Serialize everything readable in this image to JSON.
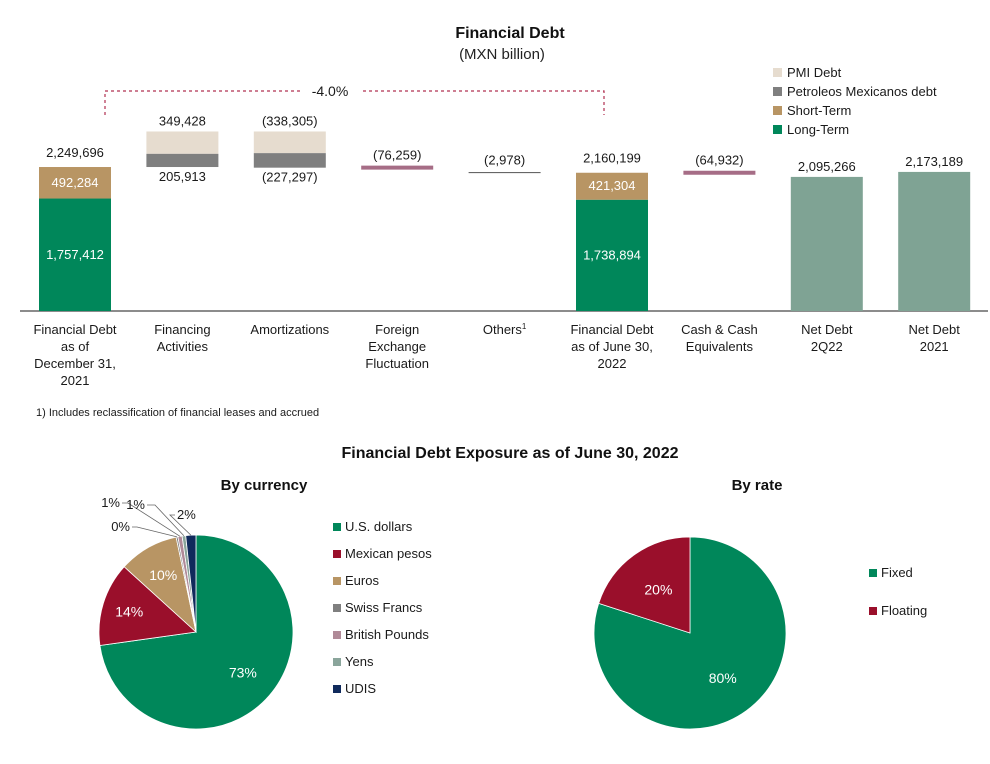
{
  "colors": {
    "long_term": "#00875a",
    "short_term": "#b89564",
    "pemex_debt": "#7f7f7f",
    "pmi_debt": "#e6dccf",
    "fx_line": "#a66d86",
    "net_debt": "#7fa394",
    "usd": "#00875a",
    "mxn": "#9a0f2b",
    "eur": "#b89564",
    "chf": "#7f7f7f",
    "gbp": "#b08a98",
    "jpy": "#8aa59b",
    "udis": "#102a5c",
    "fixed": "#00875a",
    "floating": "#9a0f2b",
    "bracket": "#b03050"
  },
  "chart_data": [
    {
      "type": "bar",
      "title": "Financial Debt",
      "subtitle": "(MXN billion)",
      "change_label": "-4.0%",
      "legend": [
        "PMI Debt",
        "Petroleos Mexicanos debt",
        "Short-Term",
        "Long-Term"
      ],
      "categories": [
        {
          "lines": [
            "Financial Debt",
            "as of",
            "December 31,",
            "2021"
          ]
        },
        {
          "lines": [
            "Financing",
            "Activities"
          ]
        },
        {
          "lines": [
            "Amortizations"
          ]
        },
        {
          "lines": [
            "Foreign",
            "Exchange",
            "Fluctuation"
          ]
        },
        {
          "lines": [
            "Others"
          ],
          "sup": "1"
        },
        {
          "lines": [
            "Financial Debt",
            "as of June 30,",
            "2022"
          ]
        },
        {
          "lines": [
            "Cash & Cash",
            "Equivalents"
          ]
        },
        {
          "lines": [
            "Net Debt",
            "2Q22"
          ]
        },
        {
          "lines": [
            "Net Debt",
            "2021"
          ]
        }
      ],
      "bars": [
        {
          "kind": "stack",
          "long_term": 1757412,
          "short_term": 492284,
          "total": 2249696,
          "long_label": "1,757,412",
          "short_label": "492,284",
          "total_label": "2,249,696"
        },
        {
          "kind": "float",
          "pmi": 349428,
          "pemex": 205913,
          "pmi_label": "349,428",
          "pemex_label": "205,913"
        },
        {
          "kind": "float",
          "pmi": -338305,
          "pemex": -227297,
          "pmi_label": "(338,305)",
          "pemex_label": "(227,297)"
        },
        {
          "kind": "line",
          "value": -76259,
          "label": "(76,259)",
          "color_key": "fx_line"
        },
        {
          "kind": "line",
          "value": -2978,
          "label": "(2,978)",
          "color_key": "none"
        },
        {
          "kind": "stack",
          "long_term": 1738894,
          "short_term": 421304,
          "total": 2160199,
          "long_label": "1,738,894",
          "short_label": "421,304",
          "total_label": "2,160,199"
        },
        {
          "kind": "line",
          "value": -64932,
          "label": "(64,932)",
          "color_key": "fx_line"
        },
        {
          "kind": "single",
          "value": 2095266,
          "label": "2,095,266"
        },
        {
          "kind": "single",
          "value": 2173189,
          "label": "2,173,189"
        }
      ],
      "footnote": "1) Includes reclassification of financial leases and accrued"
    },
    {
      "type": "pie",
      "section_title": "Financial Debt Exposure as of June 30, 2022",
      "title": "By currency",
      "slices": [
        {
          "name": "U.S. dollars",
          "value": 73,
          "label": "73%",
          "color_key": "usd"
        },
        {
          "name": "Mexican pesos",
          "value": 14,
          "label": "14%",
          "color_key": "mxn"
        },
        {
          "name": "Euros",
          "value": 10,
          "label": "10%",
          "color_key": "eur"
        },
        {
          "name": "Swiss Francs",
          "value": 0.3,
          "label": "0%",
          "color_key": "chf"
        },
        {
          "name": "British Pounds",
          "value": 0.7,
          "label": "1%",
          "color_key": "gbp"
        },
        {
          "name": "Yens",
          "value": 0.6,
          "label": "1%",
          "color_key": "jpy"
        },
        {
          "name": "UDIS",
          "value": 1.7,
          "label": "2%",
          "color_key": "udis"
        }
      ]
    },
    {
      "type": "pie",
      "title": "By rate",
      "slices": [
        {
          "name": "Fixed",
          "value": 80,
          "label": "80%",
          "color_key": "fixed"
        },
        {
          "name": "Floating",
          "value": 20,
          "label": "20%",
          "color_key": "floating"
        }
      ]
    }
  ]
}
